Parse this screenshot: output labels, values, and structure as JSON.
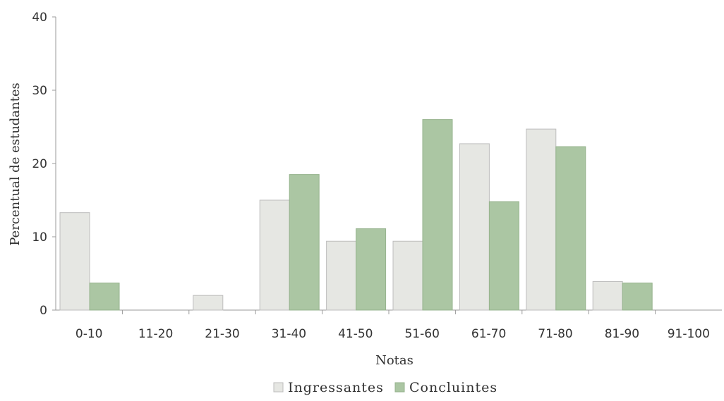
{
  "chart_data": {
    "type": "bar",
    "xlabel": "Notas",
    "ylabel": "Percentual de estudantes",
    "ylim": [
      0,
      40
    ],
    "yticks": [
      0,
      10,
      20,
      30,
      40
    ],
    "grid": false,
    "legend_position": "bottom",
    "categories": [
      "0-10",
      "11-20",
      "21-30",
      "31-40",
      "41-50",
      "51-60",
      "61-70",
      "71-80",
      "81-90",
      "91-100"
    ],
    "series": [
      {
        "name": "Ingressantes",
        "color": "#e6e7e3",
        "values": [
          13.3,
          0,
          2.0,
          15.0,
          9.4,
          9.4,
          22.7,
          24.7,
          3.9,
          0
        ]
      },
      {
        "name": "Concluintes",
        "color": "#abc6a3",
        "values": [
          3.7,
          0,
          0,
          18.5,
          11.1,
          26.0,
          14.8,
          22.3,
          3.7,
          0
        ]
      }
    ]
  }
}
